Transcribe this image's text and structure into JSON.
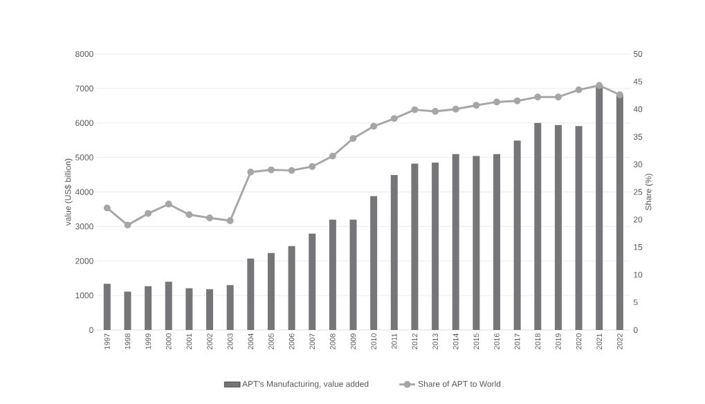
{
  "chart_data": {
    "type": "bar",
    "ylabel": "value (US$ billion)",
    "y2label": "Share (%)",
    "categories": [
      "1997",
      "1998",
      "1999",
      "2000",
      "2001",
      "2002",
      "2003",
      "2004",
      "2005",
      "2006",
      "2007",
      "2008",
      "2009",
      "2010",
      "2011",
      "2012",
      "2013",
      "2014",
      "2015",
      "2016",
      "2017",
      "2018",
      "2019",
      "2020",
      "2021",
      "2022"
    ],
    "series": [
      {
        "name": "APT's Manufacturing, value added",
        "color": "#767679",
        "values": [
          1340,
          1110,
          1270,
          1400,
          1210,
          1180,
          1300,
          2070,
          2230,
          2430,
          2790,
          3200,
          3200,
          3880,
          4490,
          4820,
          4850,
          5100,
          5040,
          5100,
          5490,
          6000,
          5940,
          5910,
          7090,
          6820
        ]
      },
      {
        "name": "Share of APT to World",
        "type": "line",
        "axis": "y2",
        "color": "#a6a6a8",
        "marker": "circle",
        "values": [
          22.1,
          19.0,
          21.1,
          22.8,
          20.9,
          20.3,
          19.8,
          28.6,
          29.0,
          28.9,
          29.6,
          31.5,
          34.7,
          36.9,
          38.3,
          39.9,
          39.6,
          40.0,
          40.7,
          41.3,
          41.5,
          42.2,
          42.2,
          43.5,
          44.3,
          42.6
        ]
      }
    ],
    "ylim": [
      0,
      8000
    ],
    "yticks": [
      0,
      1000,
      2000,
      3000,
      4000,
      5000,
      6000,
      7000,
      8000
    ],
    "y2lim": [
      0,
      50
    ],
    "y2ticks": [
      0,
      5,
      10,
      15,
      20,
      25,
      30,
      35,
      40,
      45,
      50
    ],
    "grid": "y",
    "legend": "bottom"
  }
}
